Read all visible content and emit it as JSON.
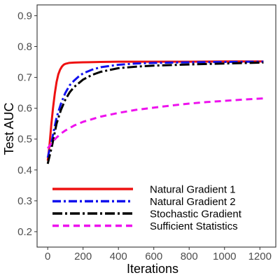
{
  "chart_data": {
    "type": "line",
    "xlabel": "Iterations",
    "ylabel": "Test AUC",
    "xlim": [
      -60,
      1290
    ],
    "ylim": [
      0.15,
      0.935
    ],
    "xticks": [
      0,
      200,
      400,
      600,
      800,
      1000,
      1200
    ],
    "yticks": [
      0.2,
      0.3,
      0.4,
      0.5,
      0.6,
      0.7,
      0.8,
      0.9
    ],
    "grid": false,
    "legend_position": "bottom-left",
    "series": [
      {
        "name": "Natural Gradient 1",
        "color": "#ee1111",
        "dash": "solid",
        "x": [
          0,
          10,
          20,
          30,
          40,
          50,
          60,
          70,
          80,
          90,
          100,
          120,
          150,
          200,
          300,
          400,
          600,
          800,
          1000,
          1220
        ],
        "y": [
          0.43,
          0.48,
          0.545,
          0.6,
          0.648,
          0.685,
          0.71,
          0.725,
          0.735,
          0.741,
          0.744,
          0.747,
          0.748,
          0.749,
          0.75,
          0.751,
          0.751,
          0.751,
          0.752,
          0.752
        ]
      },
      {
        "name": "Natural Gradient 2",
        "color": "#1111ee",
        "dash": "dashdot",
        "x": [
          0,
          25,
          50,
          75,
          100,
          125,
          150,
          175,
          200,
          250,
          300,
          400,
          500,
          600,
          800,
          1000,
          1220
        ],
        "y": [
          0.44,
          0.5,
          0.57,
          0.615,
          0.65,
          0.675,
          0.69,
          0.703,
          0.713,
          0.725,
          0.733,
          0.741,
          0.745,
          0.747,
          0.749,
          0.75,
          0.751
        ]
      },
      {
        "name": "Stochastic Gradient",
        "color": "#000000",
        "dash": "dashdotlong",
        "x": [
          0,
          25,
          50,
          75,
          100,
          125,
          150,
          200,
          250,
          300,
          400,
          500,
          600,
          800,
          1000,
          1220
        ],
        "y": [
          0.42,
          0.48,
          0.55,
          0.595,
          0.628,
          0.652,
          0.669,
          0.693,
          0.708,
          0.718,
          0.73,
          0.735,
          0.738,
          0.742,
          0.745,
          0.748
        ]
      },
      {
        "name": "Sufficient Statistics",
        "color": "#ee11ee",
        "dash": "dashed",
        "x": [
          0,
          25,
          50,
          75,
          100,
          150,
          200,
          300,
          400,
          500,
          600,
          700,
          800,
          900,
          1000,
          1100,
          1220
        ],
        "y": [
          0.47,
          0.49,
          0.505,
          0.518,
          0.528,
          0.544,
          0.556,
          0.573,
          0.585,
          0.595,
          0.602,
          0.609,
          0.615,
          0.62,
          0.624,
          0.628,
          0.632
        ]
      }
    ]
  }
}
